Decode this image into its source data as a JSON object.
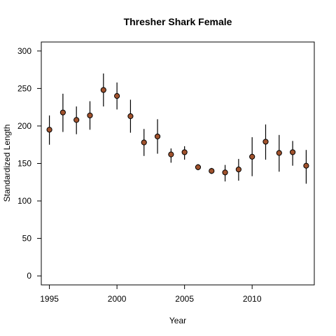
{
  "chart_data": {
    "type": "scatter",
    "title": "Thresher Shark Female",
    "xlabel": "Year",
    "ylabel": "Standardized Length",
    "xlim": [
      1994.4,
      2014.6
    ],
    "ylim": [
      -12,
      312
    ],
    "xticks": [
      1995,
      2000,
      2005,
      2010
    ],
    "yticks": [
      0,
      50,
      100,
      150,
      200,
      250,
      300
    ],
    "grid": false,
    "point_color": "#a0522d",
    "series": [
      {
        "x": [
          1995,
          1996,
          1997,
          1998,
          1999,
          2000,
          2001,
          2002,
          2003,
          2004,
          2005,
          2006,
          2007,
          2008,
          2009,
          2010,
          2011,
          2012,
          2013,
          2014
        ],
        "y": [
          195,
          218,
          208,
          214,
          248,
          240,
          213,
          178,
          186,
          162,
          165,
          145,
          140,
          138,
          142,
          159,
          179,
          164,
          165,
          147
        ],
        "lower": [
          175,
          192,
          189,
          195,
          226,
          222,
          191,
          160,
          163,
          151,
          155,
          141,
          136,
          126,
          127,
          133,
          155,
          139,
          147,
          123
        ],
        "upper": [
          214,
          243,
          226,
          233,
          270,
          258,
          235,
          196,
          209,
          170,
          173,
          149,
          144,
          148,
          156,
          185,
          202,
          188,
          180,
          168
        ]
      }
    ]
  }
}
